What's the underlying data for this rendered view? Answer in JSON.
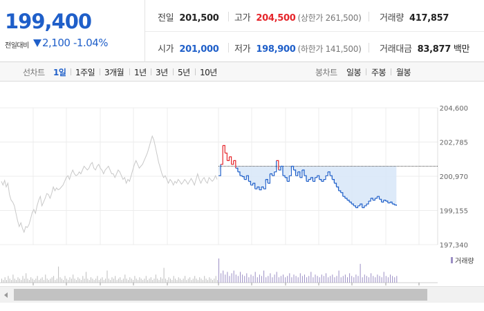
{
  "quote": {
    "current_price": "199,400",
    "change_label": "전일대비",
    "change_value": "2,100",
    "change_percent": "-1.04%",
    "change_color": "#1f5fc9"
  },
  "info": {
    "prev_close_label": "전일",
    "prev_close": "201,500",
    "high_label": "고가",
    "high": "204,500",
    "upper_limit": "(상한가 261,500)",
    "volume_label": "거래량",
    "volume": "417,857",
    "open_label": "시가",
    "open": "201,000",
    "low_label": "저가",
    "low": "198,900",
    "lower_limit": "(하한가 141,500)",
    "value_label": "거래대금",
    "value": "83,877",
    "value_unit": "백만"
  },
  "tabs": {
    "line_title": "선차트",
    "line_tabs": [
      "1일",
      "1주일",
      "3개월",
      "1년",
      "3년",
      "5년",
      "10년"
    ],
    "candle_title": "봉차트",
    "candle_tabs": [
      "일봉",
      "주봉",
      "월봉"
    ],
    "active": "1일"
  },
  "chart_data": {
    "type": "line",
    "y_ticks": [
      "204,600",
      "202,785",
      "200,970",
      "199,155",
      "197,340"
    ],
    "ylim": [
      197340,
      204600
    ],
    "reference_price": 201500,
    "volume_legend": "거래량",
    "colors": {
      "previous_day": "#c8c8c8",
      "up": "#e5252a",
      "down": "#1f5fc9",
      "fill": "#d9e8f8"
    },
    "previous_day": [
      [
        0,
        200700
      ],
      [
        1,
        200500
      ],
      [
        2,
        200750
      ],
      [
        3,
        200400
      ],
      [
        4,
        200600
      ],
      [
        5,
        200000
      ],
      [
        6,
        199700
      ],
      [
        7,
        199600
      ],
      [
        8,
        199400
      ],
      [
        9,
        199000
      ],
      [
        10,
        198600
      ],
      [
        11,
        198300
      ],
      [
        12,
        198500
      ],
      [
        13,
        198200
      ],
      [
        14,
        198000
      ],
      [
        15,
        198300
      ],
      [
        16,
        198250
      ],
      [
        17,
        198400
      ],
      [
        18,
        198700
      ],
      [
        19,
        199050
      ],
      [
        20,
        199200
      ],
      [
        21,
        199000
      ],
      [
        22,
        199400
      ],
      [
        23,
        199700
      ],
      [
        24,
        199900
      ],
      [
        25,
        199400
      ],
      [
        26,
        199600
      ],
      [
        27,
        199800
      ],
      [
        28,
        200050
      ],
      [
        29,
        200000
      ],
      [
        30,
        199800
      ],
      [
        31,
        200050
      ],
      [
        32,
        200400
      ],
      [
        33,
        200200
      ],
      [
        34,
        200350
      ],
      [
        35,
        200250
      ],
      [
        36,
        200300
      ],
      [
        37,
        200400
      ],
      [
        38,
        200500
      ],
      [
        39,
        200700
      ],
      [
        40,
        200900
      ],
      [
        41,
        201000
      ],
      [
        42,
        200800
      ],
      [
        43,
        201100
      ],
      [
        44,
        201300
      ],
      [
        45,
        201100
      ],
      [
        46,
        201000
      ],
      [
        47,
        201050
      ],
      [
        48,
        201200
      ],
      [
        49,
        201100
      ],
      [
        50,
        201300
      ],
      [
        51,
        201500
      ],
      [
        52,
        201400
      ],
      [
        53,
        201300
      ],
      [
        54,
        201400
      ],
      [
        55,
        201600
      ],
      [
        56,
        201700
      ],
      [
        57,
        201400
      ],
      [
        58,
        201300
      ],
      [
        59,
        201500
      ],
      [
        60,
        201600
      ],
      [
        61,
        201400
      ],
      [
        62,
        201300
      ],
      [
        63,
        201100
      ],
      [
        64,
        201300
      ],
      [
        65,
        201400
      ],
      [
        66,
        201500
      ],
      [
        67,
        201300
      ],
      [
        68,
        201100
      ],
      [
        69,
        201100
      ],
      [
        70,
        200900
      ],
      [
        71,
        201100
      ],
      [
        72,
        201300
      ],
      [
        73,
        201200
      ],
      [
        74,
        201000
      ],
      [
        75,
        200800
      ],
      [
        76,
        200900
      ],
      [
        77,
        200600
      ],
      [
        78,
        200800
      ],
      [
        79,
        200700
      ],
      [
        80,
        201000
      ],
      [
        81,
        201300
      ],
      [
        82,
        201600
      ],
      [
        83,
        201800
      ],
      [
        84,
        201600
      ],
      [
        85,
        201400
      ],
      [
        86,
        201500
      ],
      [
        87,
        201600
      ],
      [
        88,
        201800
      ],
      [
        89,
        202000
      ],
      [
        90,
        202200
      ],
      [
        91,
        202500
      ],
      [
        92,
        202800
      ],
      [
        93,
        203100
      ],
      [
        94,
        202900
      ],
      [
        95,
        202500
      ],
      [
        96,
        202100
      ],
      [
        97,
        201700
      ],
      [
        98,
        201400
      ],
      [
        99,
        201100
      ],
      [
        100,
        200900
      ],
      [
        101,
        201000
      ],
      [
        102,
        200800
      ],
      [
        103,
        200600
      ],
      [
        104,
        200800
      ],
      [
        105,
        200700
      ],
      [
        106,
        200500
      ],
      [
        107,
        200700
      ],
      [
        108,
        200600
      ],
      [
        109,
        200800
      ],
      [
        110,
        200700
      ],
      [
        111,
        200550
      ],
      [
        112,
        200650
      ],
      [
        113,
        200800
      ],
      [
        114,
        200700
      ],
      [
        115,
        200550
      ],
      [
        116,
        200700
      ],
      [
        117,
        200850
      ],
      [
        118,
        200700
      ],
      [
        119,
        200500
      ],
      [
        120,
        200800
      ],
      [
        121,
        201100
      ],
      [
        122,
        200800
      ],
      [
        123,
        200600
      ],
      [
        124,
        200800
      ],
      [
        125,
        200900
      ],
      [
        126,
        200700
      ],
      [
        127,
        200600
      ],
      [
        128,
        200900
      ],
      [
        129,
        200800
      ],
      [
        130,
        200700
      ],
      [
        131,
        200800
      ],
      [
        132,
        201000
      ],
      [
        133,
        200800
      ]
    ],
    "today": [
      [
        0,
        201000
      ],
      [
        1,
        201600
      ],
      [
        2,
        202600
      ],
      [
        3,
        202200
      ],
      [
        4,
        201800
      ],
      [
        5,
        202000
      ],
      [
        6,
        201600
      ],
      [
        7,
        201800
      ],
      [
        8,
        201400
      ],
      [
        9,
        201200
      ],
      [
        10,
        201000
      ],
      [
        11,
        200950
      ],
      [
        12,
        200800
      ],
      [
        13,
        201000
      ],
      [
        14,
        200700
      ],
      [
        15,
        200500
      ],
      [
        16,
        200600
      ],
      [
        17,
        200300
      ],
      [
        18,
        200400
      ],
      [
        19,
        200250
      ],
      [
        20,
        200400
      ],
      [
        21,
        200300
      ],
      [
        22,
        200800
      ],
      [
        23,
        200600
      ],
      [
        24,
        201100
      ],
      [
        25,
        201000
      ],
      [
        26,
        201200
      ],
      [
        27,
        201800
      ],
      [
        28,
        201300
      ],
      [
        29,
        201500
      ],
      [
        30,
        201000
      ],
      [
        31,
        200900
      ],
      [
        32,
        200700
      ],
      [
        33,
        201000
      ],
      [
        34,
        201500
      ],
      [
        35,
        201300
      ],
      [
        36,
        201000
      ],
      [
        37,
        201200
      ],
      [
        38,
        200900
      ],
      [
        39,
        201300
      ],
      [
        40,
        201000
      ],
      [
        41,
        200700
      ],
      [
        42,
        200800
      ],
      [
        43,
        200900
      ],
      [
        44,
        200700
      ],
      [
        45,
        200900
      ],
      [
        46,
        201000
      ],
      [
        47,
        200800
      ],
      [
        48,
        200700
      ],
      [
        49,
        200800
      ],
      [
        50,
        201000
      ],
      [
        51,
        201200
      ],
      [
        52,
        201000
      ],
      [
        53,
        200800
      ],
      [
        54,
        200600
      ],
      [
        55,
        200400
      ],
      [
        56,
        200200
      ],
      [
        57,
        200100
      ],
      [
        58,
        199900
      ],
      [
        59,
        199800
      ],
      [
        60,
        199700
      ],
      [
        61,
        199600
      ],
      [
        62,
        199500
      ],
      [
        63,
        199400
      ],
      [
        64,
        199300
      ],
      [
        65,
        199400
      ],
      [
        66,
        199500
      ],
      [
        67,
        199300
      ],
      [
        68,
        199400
      ],
      [
        69,
        199500
      ],
      [
        70,
        199650
      ],
      [
        71,
        199800
      ],
      [
        72,
        199700
      ],
      [
        73,
        199800
      ],
      [
        74,
        199900
      ],
      [
        75,
        199750
      ],
      [
        76,
        199600
      ],
      [
        77,
        199700
      ],
      [
        78,
        199650
      ],
      [
        79,
        199550
      ],
      [
        80,
        199600
      ],
      [
        81,
        199500
      ],
      [
        82,
        199450
      ],
      [
        83,
        199400
      ]
    ],
    "volume": [
      3,
      2,
      4,
      2,
      5,
      3,
      2,
      6,
      3,
      2,
      4,
      3,
      2,
      5,
      3,
      7,
      3,
      2,
      4,
      3,
      2,
      3,
      5,
      2,
      3,
      4,
      2,
      6,
      3,
      2,
      3,
      4,
      5,
      2,
      3,
      12,
      4,
      3,
      2,
      5,
      3,
      2,
      4,
      3,
      6,
      3,
      2,
      4,
      3,
      2,
      5,
      3,
      8,
      3,
      2,
      4,
      3,
      2,
      3,
      5,
      2,
      3,
      4,
      2,
      3,
      9,
      3,
      2,
      4,
      3,
      5,
      2,
      3,
      4,
      2,
      3,
      6,
      3,
      2,
      4,
      3,
      2,
      5,
      3,
      2,
      4,
      3,
      2,
      3,
      5,
      2,
      3,
      4,
      2,
      3,
      6,
      3,
      2,
      4,
      3,
      11,
      3,
      2,
      4,
      3,
      2,
      5,
      3,
      2,
      4,
      3,
      2,
      3,
      5,
      2,
      3,
      4,
      2,
      3,
      5,
      3,
      2,
      4,
      3,
      2,
      5,
      3,
      2,
      4,
      3,
      2,
      3,
      5,
      2,
      18,
      7,
      9,
      6,
      8,
      5,
      7,
      9,
      6,
      5,
      8,
      6,
      5,
      7,
      4,
      6,
      5,
      8,
      4,
      6,
      5,
      9,
      4,
      5,
      7,
      4,
      6,
      8,
      4,
      5,
      6,
      4,
      5,
      7,
      4,
      6,
      5,
      4,
      7,
      5,
      6,
      4,
      5,
      8,
      4,
      6,
      5,
      4,
      6,
      5,
      7,
      4,
      5,
      6,
      4,
      5,
      9,
      4,
      5,
      6,
      4,
      7,
      5,
      4,
      6,
      5,
      14,
      4,
      6,
      5,
      4,
      7,
      5,
      4,
      6,
      5,
      4,
      8,
      5,
      4,
      6,
      5,
      4,
      5
    ]
  }
}
